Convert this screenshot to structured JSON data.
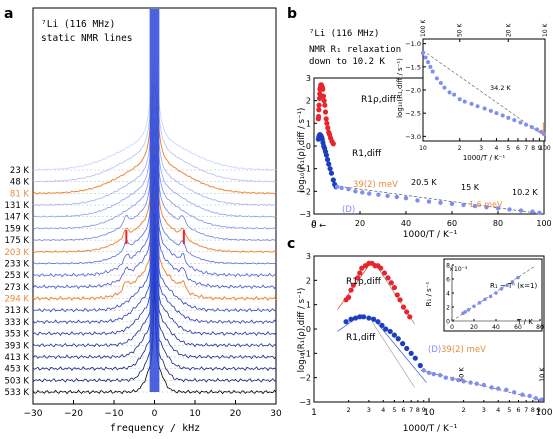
{
  "panels": {
    "a": {
      "label": "a",
      "title_line1": "⁷Li (116 MHz)",
      "title_line2": "static NMR lines",
      "xlabel": "frequency / kHz",
      "xticks": [
        "−30",
        "−20",
        "−10",
        "0",
        "10",
        "20",
        "30"
      ],
      "temps": [
        "23 K",
        "48 K",
        "81 K",
        "131 K",
        "147 K",
        "159 K",
        "175 K",
        "203 K",
        "233 K",
        "253 K",
        "273 K",
        "294 K",
        "313 K",
        "333 K",
        "353 K",
        "393 K",
        "413 K",
        "453 K",
        "503 K",
        "533 K"
      ],
      "highlight_temps": [
        "81 K",
        "203 K",
        "294 K"
      ]
    },
    "b": {
      "label": "b",
      "title_line1": "⁷Li (116 MHz)",
      "title_line2": "NMR R₁ relaxation",
      "title_line3": "down to 10.2 K",
      "ylabel": "log₁₀(R₁(ρ),diff / s⁻¹)",
      "xlabel": "1000/T / K⁻¹",
      "yticks": [
        "3",
        "2",
        "1",
        "0",
        "−1",
        "−2",
        "−3"
      ],
      "xticks": [
        "0",
        "20",
        "40",
        "60",
        "80",
        "100"
      ],
      "annotations": {
        "r1rho": "R1ρ,diff",
        "r1": "R1,diff",
        "ea": "39(2) meV",
        "d": "(D)",
        "t1": "20.5 K",
        "t2": "15 K",
        "t3": "10.2 K",
        "ea2": "1.6 meV",
        "arrow": "0 ←"
      },
      "inset": {
        "ylabel": "log₁₀(R₁,diff / s⁻¹)",
        "xlabel": "1000/T / K⁻¹",
        "yticks": [
          "−1.0",
          "−1.5",
          "−2.0",
          "−2.5",
          "−3.0"
        ],
        "xticks": [
          "10",
          "2",
          "3",
          "4",
          "5",
          "6",
          "7",
          "8",
          "9",
          "100"
        ],
        "top_ticks": [
          "100 K",
          "50 K",
          "20 K",
          "10 K"
        ],
        "annotation": "34.2 K"
      }
    },
    "c": {
      "label": "c",
      "ylabel": "log₁₀(R₁(ρ),diff / s⁻¹)",
      "xlabel": "1000/T / K⁻¹",
      "yticks": [
        "3",
        "2",
        "1",
        "0",
        "−1",
        "−2",
        "−3"
      ],
      "xticks": [
        "1",
        "2",
        "3",
        "4",
        "5",
        "6",
        "7",
        "8",
        "9",
        "10",
        "2",
        "3",
        "4",
        "5",
        "6",
        "7",
        "8",
        "9",
        "100"
      ],
      "top_ticks": [
        "50 K",
        "10 K"
      ],
      "annotations": {
        "r1rho": "R1ρ,diff",
        "r1": "R1,diff",
        "d": "(D)",
        "ea": "39(2) meV"
      },
      "inset": {
        "ylabel": "R₁ / s⁻¹",
        "xlabel": "T / K",
        "scale": "×10⁻³",
        "yticks": [
          "0",
          "2",
          "4",
          "6",
          "8"
        ],
        "xticks": [
          "0",
          "20",
          "40",
          "60",
          "80"
        ],
        "annotation": "R₁ ~ Tⁿ (κ=1)"
      }
    }
  },
  "colors": {
    "rho": "#e8242c",
    "r1": "#1d3fbf",
    "light": "#7f8ef0",
    "orange": "#ec8a3a",
    "gray": "#888888"
  },
  "chart_data": [
    {
      "type": "line",
      "title": "⁷Li (116 MHz) static NMR lines",
      "xlabel": "frequency / kHz",
      "xlim": [
        -30,
        30
      ],
      "series_names": [
        "23 K",
        "48 K",
        "81 K",
        "131 K",
        "147 K",
        "159 K",
        "175 K",
        "203 K",
        "233 K",
        "253 K",
        "273 K",
        "294 K",
        "313 K",
        "333 K",
        "353 K",
        "393 K",
        "413 K",
        "453 K",
        "503 K",
        "533 K"
      ]
    },
    {
      "type": "scatter",
      "xlabel": "1000/T / K⁻¹",
      "ylabel": "log₁₀(R₁(ρ),diff / s⁻¹)",
      "xlim": [
        0,
        100
      ],
      "ylim": [
        -3,
        3
      ],
      "series": [
        {
          "name": "R1ρ,diff",
          "x": [
            1.9,
            2.0,
            2.1,
            2.2,
            2.4,
            2.5,
            2.6,
            2.8,
            3.0,
            3.2,
            3.4,
            3.6,
            3.8,
            4.1,
            4.4,
            4.7,
            5.0,
            5.3,
            5.6,
            6.0,
            6.4,
            6.8,
            7.2,
            7.8,
            8.4
          ],
          "y": [
            1.2,
            1.3,
            1.6,
            1.8,
            2.1,
            2.3,
            2.5,
            2.6,
            2.7,
            2.7,
            2.6,
            2.6,
            2.5,
            2.2,
            2.0,
            1.8,
            1.5,
            1.2,
            1.0,
            0.8,
            0.6,
            0.5,
            0.35,
            0.2,
            0.1
          ]
        },
        {
          "name": "R1,diff",
          "x": [
            1.9,
            2.1,
            2.3,
            2.5,
            2.7,
            3.0,
            3.3,
            3.6,
            3.9,
            4.2,
            4.6,
            5.0,
            5.4,
            5.9,
            6.4,
            7.0,
            7.6,
            8.4,
            9.0,
            9.6
          ],
          "y": [
            0.3,
            0.4,
            0.45,
            0.5,
            0.5,
            0.45,
            0.4,
            0.3,
            0.15,
            0.0,
            -0.1,
            -0.25,
            -0.4,
            -0.6,
            -0.8,
            -1.0,
            -1.2,
            -1.5,
            -1.7,
            -1.8
          ]
        },
        {
          "name": "(D)",
          "x": [
            10,
            12,
            15,
            18,
            21,
            24,
            28,
            32,
            36,
            40,
            45,
            50,
            55,
            60,
            65,
            70,
            75,
            80,
            85,
            90,
            95,
            98
          ],
          "y": [
            -1.8,
            -1.85,
            -1.9,
            -2.0,
            -2.05,
            -2.1,
            -2.15,
            -2.2,
            -2.25,
            -2.3,
            -2.4,
            -2.45,
            -2.5,
            -2.55,
            -2.6,
            -2.65,
            -2.7,
            -2.75,
            -2.8,
            -2.85,
            -2.9,
            -2.95
          ]
        }
      ]
    },
    {
      "type": "scatter",
      "xlabel": "1000/T / K⁻¹",
      "ylabel": "log₁₀(R₁,diff / s⁻¹)",
      "xlim": [
        10,
        100
      ],
      "ylim": [
        -3.1,
        -0.9
      ],
      "xscale": "log",
      "series": [
        {
          "name": "R1,diff",
          "x": [
            10,
            10.5,
            11,
            11.5,
            12,
            13,
            14,
            15,
            16.5,
            18,
            20,
            22,
            25,
            28,
            32,
            36,
            40,
            45,
            50,
            56,
            63,
            70,
            78,
            86,
            93,
            98
          ],
          "y": [
            -1.2,
            -1.3,
            -1.4,
            -1.5,
            -1.6,
            -1.75,
            -1.85,
            -1.95,
            -2.05,
            -2.1,
            -2.2,
            -2.25,
            -2.3,
            -2.35,
            -2.4,
            -2.45,
            -2.5,
            -2.55,
            -2.6,
            -2.65,
            -2.7,
            -2.75,
            -2.8,
            -2.85,
            -2.9,
            -2.95
          ]
        }
      ]
    },
    {
      "type": "scatter",
      "xlabel": "1000/T / K⁻¹",
      "ylabel": "log₁₀(R₁(ρ),diff / s⁻¹)",
      "xlim": [
        1,
        100
      ],
      "ylim": [
        -3,
        3
      ],
      "xscale": "log",
      "series": [
        {
          "name": "R1ρ,diff",
          "x": [
            1.9,
            2.0,
            2.1,
            2.2,
            2.4,
            2.5,
            2.6,
            2.8,
            3.0,
            3.2,
            3.4,
            3.6,
            3.8,
            4.1,
            4.4,
            4.7,
            5.0,
            5.3,
            5.6,
            6.0,
            6.4,
            6.8
          ],
          "y": [
            1.2,
            1.3,
            1.6,
            1.8,
            2.1,
            2.3,
            2.5,
            2.6,
            2.7,
            2.7,
            2.6,
            2.6,
            2.5,
            2.3,
            2.1,
            1.9,
            1.7,
            1.4,
            1.2,
            0.9,
            0.7,
            0.5
          ]
        },
        {
          "name": "R1,diff",
          "x": [
            1.9,
            2.1,
            2.3,
            2.5,
            2.7,
            3.0,
            3.3,
            3.6,
            3.9,
            4.2,
            4.6,
            5.0,
            5.4,
            5.9,
            6.4,
            7.0,
            7.6,
            8.4
          ],
          "y": [
            0.3,
            0.4,
            0.45,
            0.5,
            0.5,
            0.45,
            0.4,
            0.3,
            0.15,
            0.0,
            -0.1,
            -0.25,
            -0.4,
            -0.6,
            -0.8,
            -1.0,
            -1.2,
            -1.5
          ]
        },
        {
          "name": "(D)",
          "x": [
            9.0,
            10,
            11,
            12.5,
            14,
            16,
            18,
            20,
            23,
            26,
            30,
            35,
            40,
            47,
            55,
            65,
            75,
            85,
            95
          ],
          "y": [
            -1.7,
            -1.8,
            -1.85,
            -1.9,
            -2.0,
            -2.05,
            -2.1,
            -2.15,
            -2.2,
            -2.25,
            -2.3,
            -2.4,
            -2.45,
            -2.5,
            -2.6,
            -2.7,
            -2.75,
            -2.85,
            -2.9
          ]
        }
      ]
    },
    {
      "type": "scatter",
      "xlabel": "T / K",
      "ylabel": "R₁ / s⁻¹",
      "xlim": [
        0,
        80
      ],
      "ylim": [
        0,
        8
      ],
      "series": [
        {
          "name": "R1",
          "x": [
            10,
            12,
            15,
            20,
            25,
            30,
            35,
            40,
            45,
            50,
            55,
            60
          ],
          "y": [
            1.1,
            1.3,
            1.6,
            2.1,
            2.6,
            3.1,
            3.5,
            4.0,
            4.6,
            5.1,
            5.6,
            6.2
          ]
        }
      ]
    }
  ]
}
